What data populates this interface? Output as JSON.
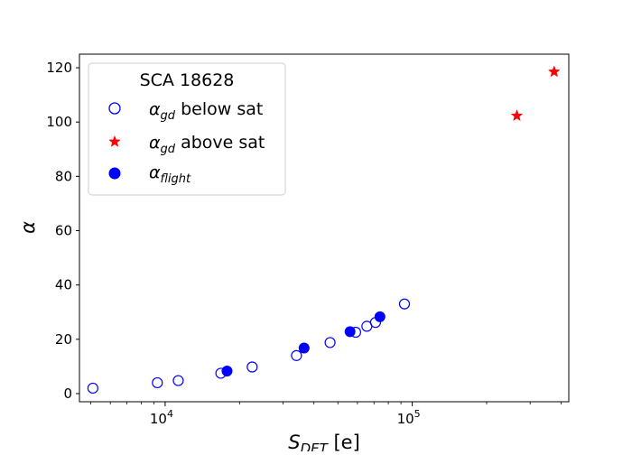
{
  "chart_data": {
    "type": "scatter",
    "xscale": "log",
    "xlim": [
      4500,
      430000
    ],
    "ylim": [
      -3,
      125
    ],
    "xlabel": {
      "main": "S",
      "sub": "DET",
      "tail": " [e]"
    },
    "ylabel": "α",
    "xticks": [
      {
        "value": 10000,
        "base": "10",
        "exp": "4"
      },
      {
        "value": 100000,
        "base": "10",
        "exp": "5"
      }
    ],
    "yticks": [
      0,
      20,
      40,
      60,
      80,
      100,
      120
    ],
    "grid": false,
    "legend": {
      "position": "upper-left",
      "title": "SCA 18628",
      "entries": [
        {
          "series": 0,
          "sym": "α",
          "sub": "gd",
          "text": " below sat"
        },
        {
          "series": 1,
          "sym": "α",
          "sub": "gd",
          "text": " above sat"
        },
        {
          "series": 2,
          "sym": "α",
          "sub": "flight",
          "text": ""
        }
      ]
    },
    "series": [
      {
        "marker": "open-circle",
        "color": "#0000ff",
        "x": [
          5100,
          9300,
          11300,
          16800,
          22500,
          34000,
          46500,
          59000,
          65500,
          71000,
          93000
        ],
        "y": [
          2.0,
          4.0,
          4.8,
          7.5,
          9.8,
          14.0,
          18.8,
          22.6,
          24.8,
          26.2,
          33.0
        ]
      },
      {
        "marker": "star",
        "color": "#ff0000",
        "x": [
          265000,
          375000
        ],
        "y": [
          102.3,
          118.5
        ]
      },
      {
        "marker": "filled-circle",
        "color": "#0000ff",
        "x": [
          17800,
          36500,
          56000,
          74000
        ],
        "y": [
          8.3,
          16.8,
          22.8,
          28.3
        ]
      }
    ]
  }
}
